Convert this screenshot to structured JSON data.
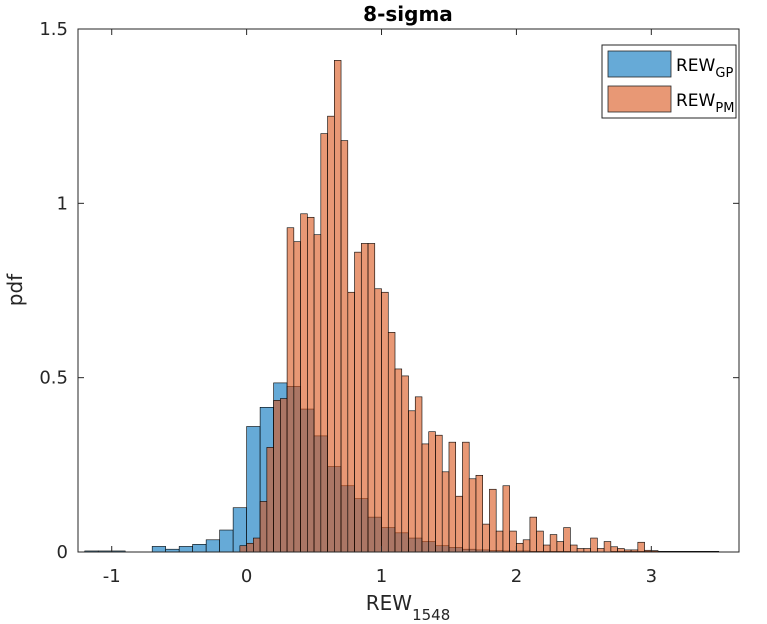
{
  "chart_data": {
    "type": "bar",
    "title": "8-sigma",
    "xlabel": {
      "main": "REW",
      "sub": "1548"
    },
    "ylabel": "pdf",
    "xlim": [
      -1.25,
      3.65
    ],
    "ylim": [
      0,
      1.5
    ],
    "x_ticks": [
      -1,
      0,
      1,
      2,
      3
    ],
    "x_tick_labels": [
      "-1",
      "0",
      "1",
      "2",
      "3"
    ],
    "y_ticks": [
      0,
      0.5,
      1,
      1.5
    ],
    "y_tick_labels": [
      "0",
      "0.5",
      "1",
      "1.5"
    ],
    "legend_position": "top-right",
    "series": [
      {
        "name": "REW",
        "name_sub": "GP",
        "color": "#0072BD",
        "bin_width": 0.1,
        "bin_start": -1.2,
        "values": [
          0.003,
          0.003,
          0.003,
          0,
          0,
          0.016,
          0.008,
          0.016,
          0.022,
          0.035,
          0.063,
          0.127,
          0.36,
          0.415,
          0.485,
          0.475,
          0.41,
          0.333,
          0.245,
          0.19,
          0.153,
          0.1,
          0.07,
          0.055,
          0.04,
          0.03,
          0.018,
          0.013,
          0.008,
          0.006,
          0.004,
          0.003,
          0.003,
          0.002,
          0.002,
          0.002,
          0.001,
          0.001,
          0,
          0.002,
          0.002,
          0.002,
          0.002,
          0.002,
          0.002,
          0.002,
          0.002
        ]
      },
      {
        "name": "REW",
        "name_sub": "PM",
        "color": "#D95319",
        "bin_width": 0.05,
        "bin_start": -0.05,
        "values": [
          0.018,
          0.025,
          0.04,
          0.145,
          0.3,
          0.435,
          0.44,
          0.93,
          0.89,
          0.97,
          0.96,
          0.91,
          1.2,
          1.25,
          1.41,
          1.18,
          0.745,
          0.86,
          0.885,
          0.885,
          0.755,
          0.745,
          0.63,
          0.525,
          0.505,
          0.405,
          0.445,
          0.31,
          0.345,
          0.335,
          0.23,
          0.315,
          0.16,
          0.315,
          0.21,
          0.22,
          0.08,
          0.18,
          0.06,
          0.19,
          0.06,
          0.025,
          0.035,
          0.1,
          0.06,
          0.02,
          0.05,
          0.03,
          0.07,
          0.02,
          0.01,
          0.01,
          0.04,
          0.01,
          0.03,
          0.015,
          0.01,
          0.006,
          0.006,
          0.028,
          0.005,
          0.004
        ]
      }
    ]
  }
}
